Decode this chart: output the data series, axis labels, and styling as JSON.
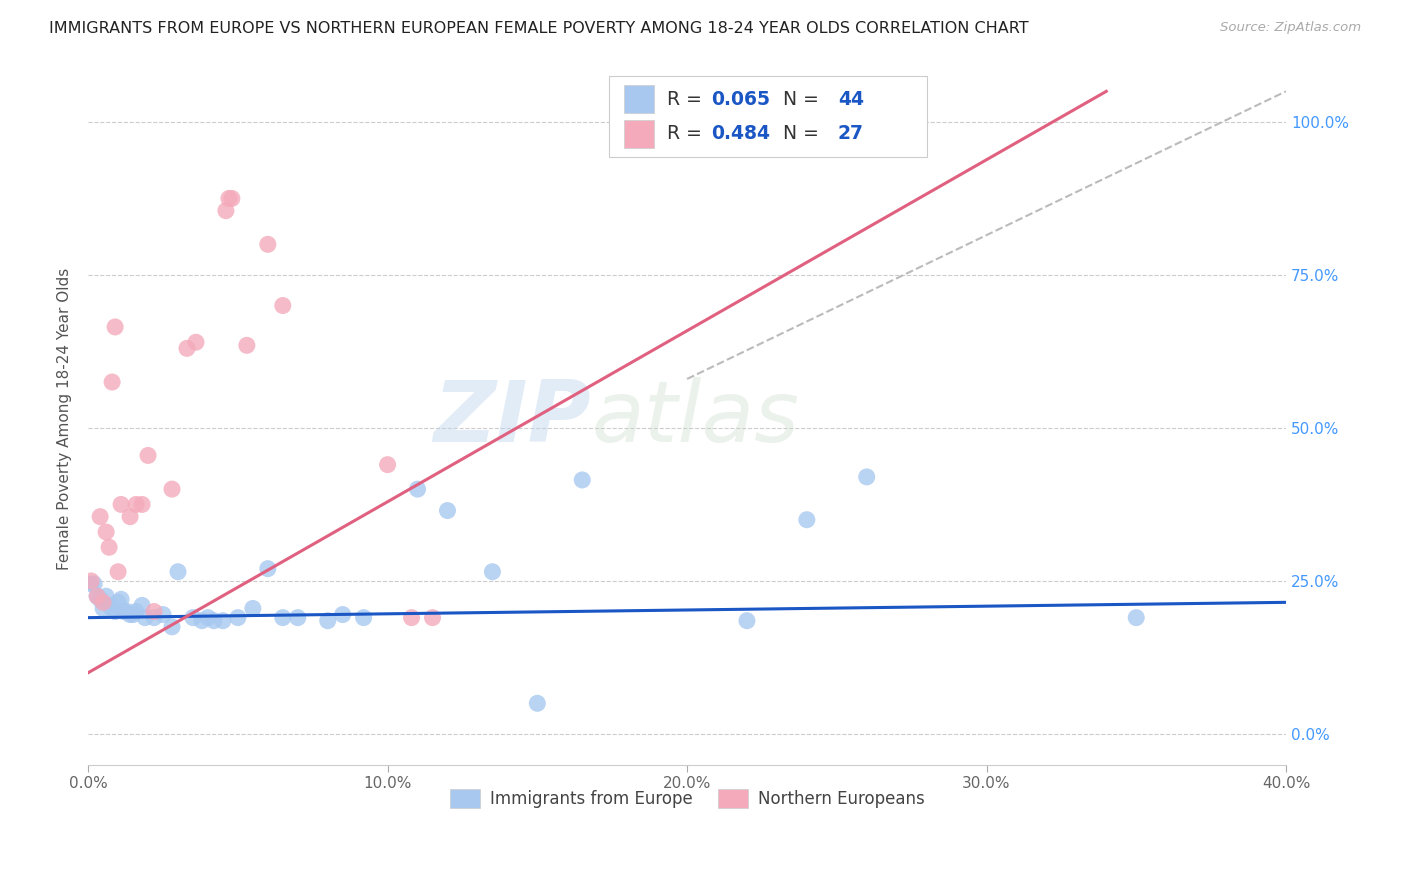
{
  "title": "IMMIGRANTS FROM EUROPE VS NORTHERN EUROPEAN FEMALE POVERTY AMONG 18-24 YEAR OLDS CORRELATION CHART",
  "source": "Source: ZipAtlas.com",
  "ylabel": "Female Poverty Among 18-24 Year Olds",
  "xlim": [
    0.0,
    0.4
  ],
  "ylim": [
    -0.05,
    1.08
  ],
  "xtick_labels": [
    "0.0%",
    "10.0%",
    "20.0%",
    "30.0%",
    "40.0%"
  ],
  "xtick_vals": [
    0.0,
    0.1,
    0.2,
    0.3,
    0.4
  ],
  "ytick_vals": [
    0.0,
    0.25,
    0.5,
    0.75,
    1.0
  ],
  "ytick_labels_right": [
    "0.0%",
    "25.0%",
    "50.0%",
    "75.0%",
    "100.0%"
  ],
  "blue_color": "#A8C8F0",
  "pink_color": "#F4AABB",
  "blue_line_color": "#1A56C4",
  "pink_line_color": "#E06080",
  "dash_line_color": "#BBBBBB",
  "legend_R_blue": "0.065",
  "legend_N_blue": "44",
  "legend_R_pink": "0.484",
  "legend_N_pink": "27",
  "watermark_zip": "ZIP",
  "watermark_atlas": "atlas",
  "blue_scatter_x": [
    0.001,
    0.002,
    0.003,
    0.004,
    0.005,
    0.006,
    0.007,
    0.008,
    0.009,
    0.01,
    0.011,
    0.012,
    0.013,
    0.014,
    0.015,
    0.016,
    0.018,
    0.019,
    0.022,
    0.025,
    0.028,
    0.03,
    0.035,
    0.038,
    0.04,
    0.042,
    0.045,
    0.05,
    0.055,
    0.06,
    0.065,
    0.07,
    0.08,
    0.085,
    0.11,
    0.12,
    0.15,
    0.165,
    0.22,
    0.24,
    0.26,
    0.35,
    0.135,
    0.092
  ],
  "blue_scatter_y": [
    0.245,
    0.245,
    0.225,
    0.22,
    0.205,
    0.225,
    0.21,
    0.205,
    0.2,
    0.215,
    0.22,
    0.2,
    0.2,
    0.195,
    0.195,
    0.2,
    0.21,
    0.19,
    0.19,
    0.195,
    0.175,
    0.265,
    0.19,
    0.185,
    0.19,
    0.185,
    0.185,
    0.19,
    0.205,
    0.27,
    0.19,
    0.19,
    0.185,
    0.195,
    0.4,
    0.365,
    0.05,
    0.415,
    0.185,
    0.35,
    0.42,
    0.19,
    0.265,
    0.19
  ],
  "pink_scatter_x": [
    0.001,
    0.003,
    0.004,
    0.005,
    0.006,
    0.007,
    0.008,
    0.009,
    0.01,
    0.011,
    0.014,
    0.016,
    0.018,
    0.02,
    0.022,
    0.028,
    0.033,
    0.036,
    0.046,
    0.047,
    0.048,
    0.053,
    0.06,
    0.065,
    0.1,
    0.108,
    0.115
  ],
  "pink_scatter_y": [
    0.25,
    0.225,
    0.355,
    0.215,
    0.33,
    0.305,
    0.575,
    0.665,
    0.265,
    0.375,
    0.355,
    0.375,
    0.375,
    0.455,
    0.2,
    0.4,
    0.63,
    0.64,
    0.855,
    0.875,
    0.875,
    0.635,
    0.8,
    0.7,
    0.44,
    0.19,
    0.19
  ],
  "blue_line_x": [
    0.0,
    0.4
  ],
  "blue_line_y": [
    0.19,
    0.215
  ],
  "pink_line_x": [
    0.0,
    0.34
  ],
  "pink_line_y": [
    0.1,
    1.05
  ],
  "dash_line_x": [
    0.2,
    0.4
  ],
  "dash_line_y": [
    0.58,
    1.05
  ]
}
